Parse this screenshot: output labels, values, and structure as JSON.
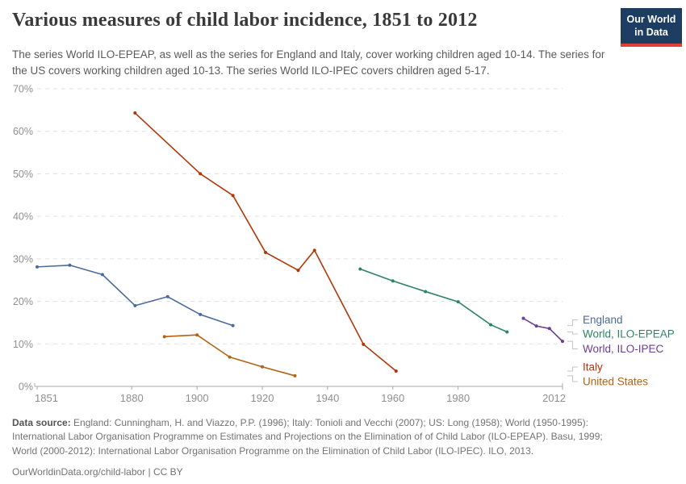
{
  "header": {
    "title": "Various measures of child labor incidence, 1851 to 2012",
    "subtitle": "The series World ILO-EPEAP, as well as the series for England and Italy, cover working children aged 10-14. The series for the US covers working children aged 10-13. The series World ILO-IPEC covers children aged 5-17.",
    "logo": {
      "line1": "Our World",
      "line2": "in Data",
      "background_color": "#1d3d63",
      "underline_color": "#e0403a"
    }
  },
  "chart_data": {
    "type": "line",
    "title": "Various measures of child labor incidence, 1851 to 2012",
    "xlabel": "",
    "ylabel": "",
    "xlim": [
      1851,
      2012
    ],
    "ylim": [
      0,
      70
    ],
    "x_ticks": [
      1851,
      1880,
      1900,
      1920,
      1940,
      1960,
      1980,
      2012
    ],
    "y_ticks": [
      "0%",
      "10%",
      "20%",
      "30%",
      "40%",
      "50%",
      "60%",
      "70%"
    ],
    "grid": "horizontal-dashed",
    "legend_position": "right",
    "style": {
      "grid_color": "#e0e0e0",
      "axis_color": "#a8a8a8",
      "connector_color": "#c4c4c4",
      "tick_label_color": "#8f8f8f"
    },
    "series": [
      {
        "name": "England",
        "color": "#4C6A9C",
        "x": [
          1851,
          1861,
          1871,
          1881,
          1891,
          1901,
          1911
        ],
        "values": [
          28.1,
          28.5,
          26.3,
          19.0,
          21.1,
          16.9,
          14.3
        ]
      },
      {
        "name": "World, ILO-EPEAP",
        "color": "#2C8465",
        "x": [
          1950,
          1960,
          1970,
          1980,
          1990,
          1995
        ],
        "values": [
          27.6,
          24.8,
          22.3,
          19.9,
          14.5,
          12.8
        ]
      },
      {
        "name": "World, ILO-IPEC",
        "color": "#6D3E91",
        "x": [
          2000,
          2004,
          2008,
          2012
        ],
        "values": [
          16.0,
          14.2,
          13.6,
          10.6
        ]
      },
      {
        "name": "Italy",
        "color": "#B13507",
        "x": [
          1881,
          1901,
          1911,
          1921,
          1931,
          1936,
          1951,
          1961
        ],
        "values": [
          64.3,
          50.0,
          44.9,
          31.5,
          27.3,
          32.0,
          9.9,
          3.6
        ]
      },
      {
        "name": "United States",
        "color": "#B16214",
        "x": [
          1890,
          1900,
          1910,
          1920,
          1930
        ],
        "values": [
          11.7,
          12.1,
          6.9,
          4.6,
          2.5
        ]
      }
    ]
  },
  "footer": {
    "source_label": "Data source:",
    "source_text": " England: Cunningham, H. and Viazzo, P.P. (1996); Italy: Tonioli and Vecchi (2007); US: Long (1958); World (1950-1995): International Labor Organisation Programme on Estimates and Projections on the Elimination of of Child Labor (ILO-EPEAP). Basu, 1999; World (2000-2012): International Labor Organisation Programme on the Elimination of Child Labor (ILO-IPEC). ILO, 2013.",
    "url": "OurWorldinData.org/child-labor",
    "license": " | CC BY"
  }
}
